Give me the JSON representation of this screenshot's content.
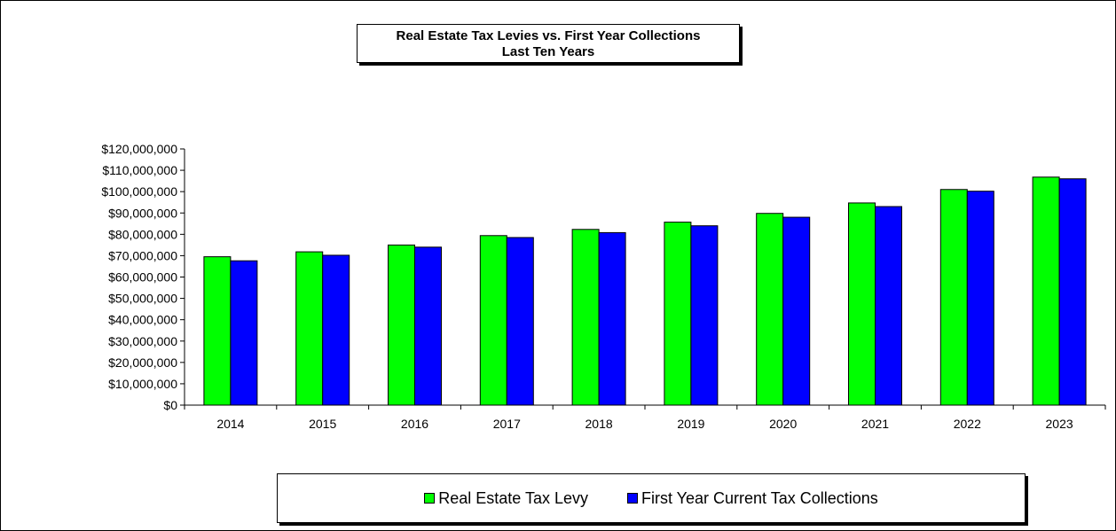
{
  "chart_data": {
    "type": "bar",
    "title": "Real Estate Tax Levies vs. First Year Collections",
    "subtitle": "Last Ten Years",
    "categories": [
      "2014",
      "2015",
      "2016",
      "2017",
      "2018",
      "2019",
      "2020",
      "2021",
      "2022",
      "2023"
    ],
    "series": [
      {
        "name": "Real Estate Tax Levy",
        "color": "#00ff00",
        "values": [
          69500000,
          71800000,
          75000000,
          79400000,
          82300000,
          85700000,
          89800000,
          94700000,
          101000000,
          106800000
        ]
      },
      {
        "name": "First Year Current Tax Collections",
        "color": "#0000ff",
        "values": [
          67600000,
          70200000,
          74000000,
          78500000,
          80800000,
          84000000,
          88000000,
          93000000,
          100200000,
          106000000
        ]
      }
    ],
    "ylim": [
      0,
      120000000
    ],
    "yticks": [
      "$0",
      "$10,000,000",
      "$20,000,000",
      "$30,000,000",
      "$40,000,000",
      "$50,000,000",
      "$60,000,000",
      "$70,000,000",
      "$80,000,000",
      "$90,000,000",
      "$100,000,000",
      "$110,000,000",
      "$120,000,000"
    ],
    "grid": false,
    "legend": "bottom"
  }
}
